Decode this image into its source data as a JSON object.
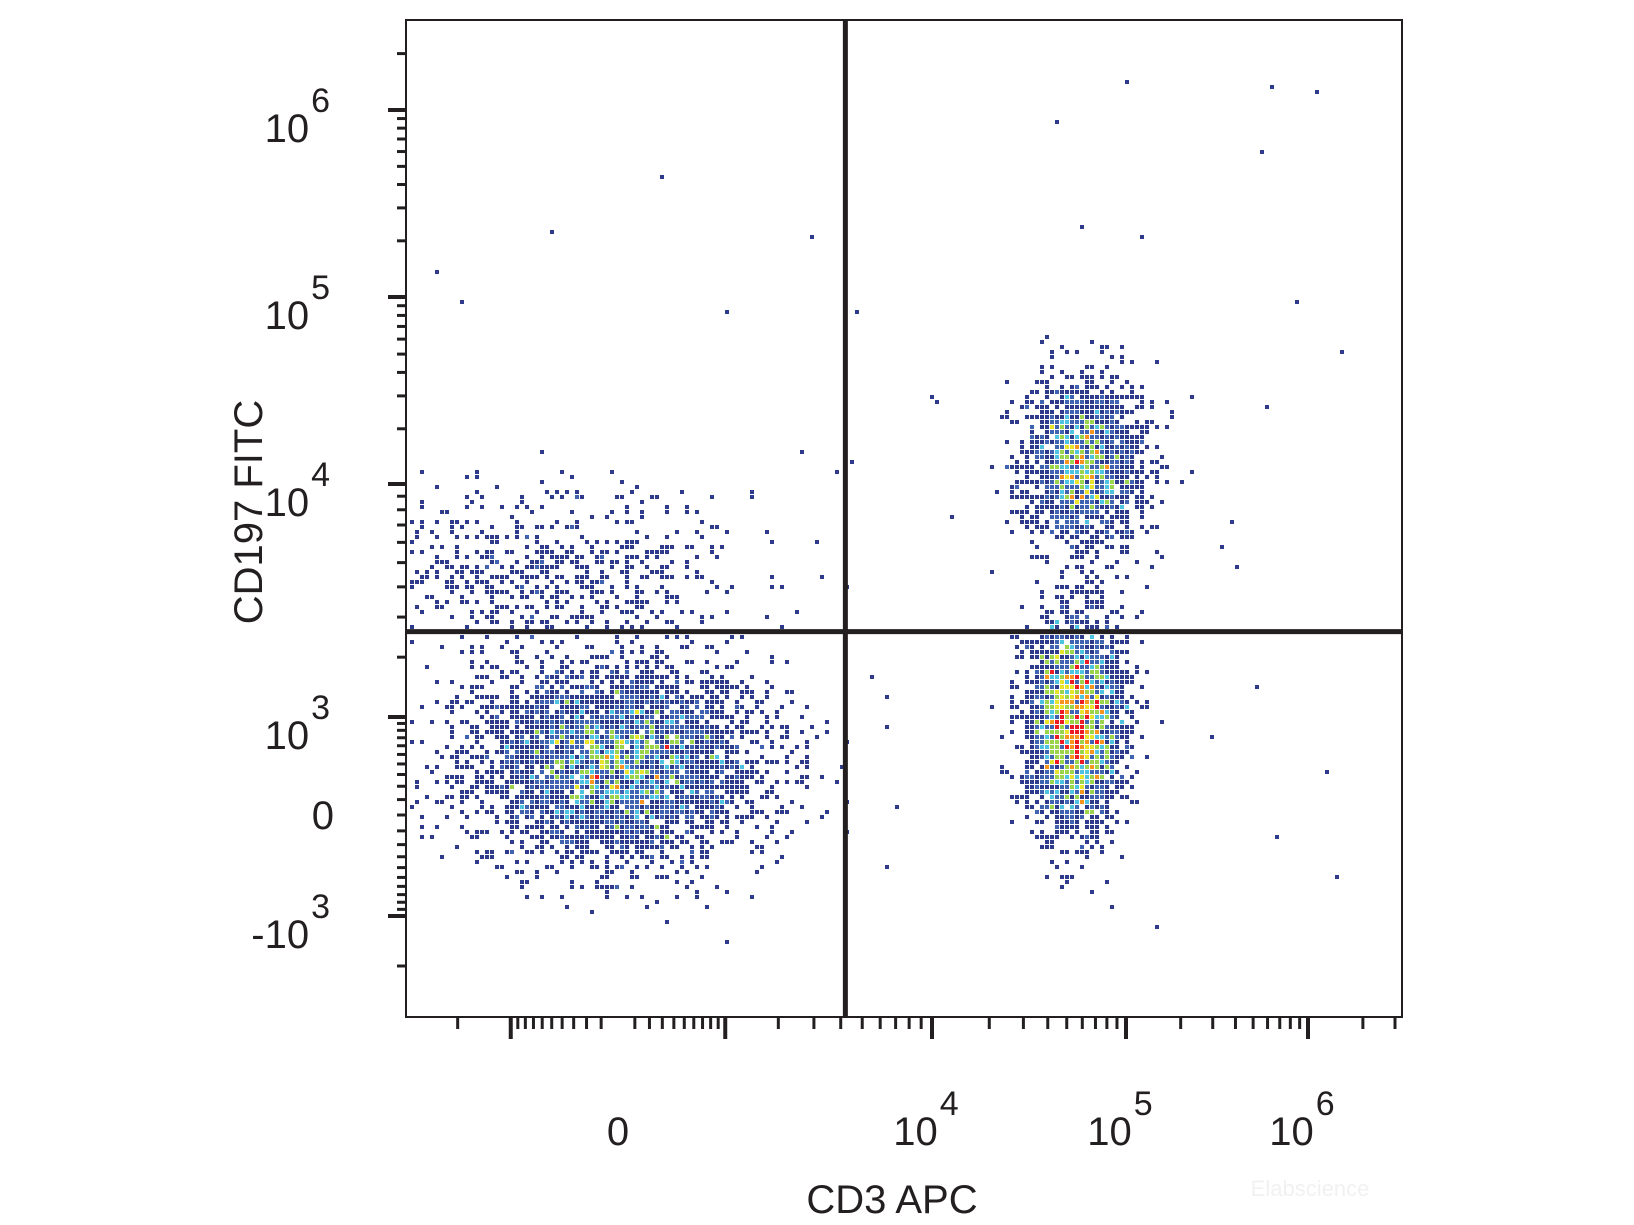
{
  "chart_data": {
    "type": "scatter",
    "subtype": "flow-cytometry-density-dot-plot",
    "title": "",
    "xlabel": "CD3 APC",
    "ylabel": "CD197 FITC",
    "x_scale": "biexponential",
    "y_scale": "biexponential",
    "xlim": [
      -3000,
      2000000
    ],
    "ylim": [
      -3000,
      2500000
    ],
    "x_ticks": [
      {
        "value": 0,
        "base": "0",
        "exp": ""
      },
      {
        "value": 10000,
        "base": "10",
        "exp": "4"
      },
      {
        "value": 100000,
        "base": "10",
        "exp": "5"
      },
      {
        "value": 1000000,
        "base": "10",
        "exp": "6"
      }
    ],
    "y_ticks": [
      {
        "value": -1000,
        "base": "-10",
        "exp": "3"
      },
      {
        "value": 0,
        "base": "0",
        "exp": ""
      },
      {
        "value": 1000,
        "base": "10",
        "exp": "3"
      },
      {
        "value": 10000,
        "base": "10",
        "exp": "4"
      },
      {
        "value": 100000,
        "base": "10",
        "exp": "5"
      },
      {
        "value": 1000000,
        "base": "10",
        "exp": "6"
      }
    ],
    "quadrant_gate": {
      "x": 4200,
      "y": 2600
    },
    "populations": [
      {
        "name": "CD3- CD197-",
        "center": [
          0,
          400
        ],
        "count": 4300
      },
      {
        "name": "CD3- CD197+",
        "center": [
          -500,
          4500
        ],
        "count": 700
      },
      {
        "name": "CD3+ CD197-",
        "center": [
          55000,
          900
        ],
        "count": 3300
      },
      {
        "name": "CD3+ CD197+",
        "center": [
          60000,
          13000
        ],
        "count": 1900
      }
    ],
    "density_colors": [
      "#2e3a8c",
      "#3f63b0",
      "#4ec3e0",
      "#9bd44b",
      "#e6e32a",
      "#f7941d",
      "#ed1c24"
    ],
    "legend": "none",
    "grid": false
  },
  "watermark": "Elabscience"
}
